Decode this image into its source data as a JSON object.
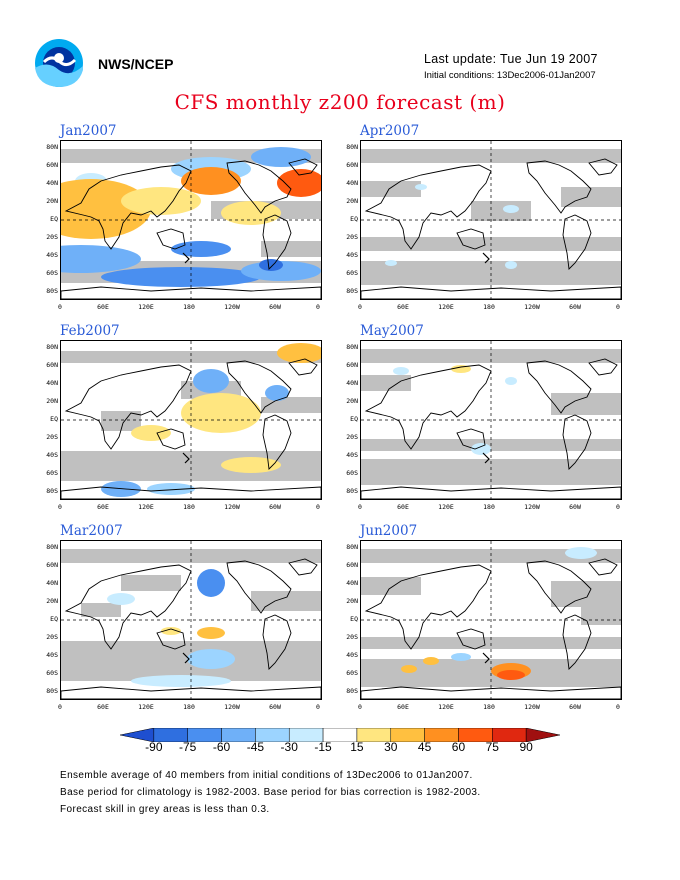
{
  "header": {
    "org": "NWS/NCEP",
    "last_update": "Last update: Tue Jun 19 2007",
    "initial_conditions": "Initial conditions: 13Dec2006-01Jan2007",
    "title": "CFS monthly z200 forecast (m)"
  },
  "panels": [
    {
      "title": "Jan2007"
    },
    {
      "title": "Apr2007"
    },
    {
      "title": "Feb2007"
    },
    {
      "title": "May2007"
    },
    {
      "title": "Mar2007"
    },
    {
      "title": "Jun2007"
    }
  ],
  "axes": {
    "lat_labels": [
      "80N",
      "60N",
      "40N",
      "20N",
      "EQ",
      "20S",
      "40S",
      "60S",
      "80S"
    ],
    "lon_labels": [
      "0",
      "60E",
      "120E",
      "180",
      "120W",
      "60W",
      "0"
    ]
  },
  "legend": {
    "labels": [
      "-90",
      "-75",
      "-60",
      "-45",
      "-30",
      "-15",
      "15",
      "30",
      "45",
      "60",
      "75",
      "90"
    ],
    "colors": [
      "#1e4fd0",
      "#2f6fe0",
      "#4a8ff0",
      "#6fb0f8",
      "#9cd4ff",
      "#c8ecff",
      "#ffffff",
      "#ffe680",
      "#ffc040",
      "#ff9020",
      "#ff5a10",
      "#e02810",
      "#a01010"
    ]
  },
  "footer": {
    "line1": "Ensemble average of 40 members from initial conditions of 13Dec2006 to 01Jan2007.",
    "line2": "Base period for climatology is 1982-2003. Base period for bias correction is 1982-2003.",
    "line3": "Forecast skill in grey areas is less than 0.3."
  }
}
